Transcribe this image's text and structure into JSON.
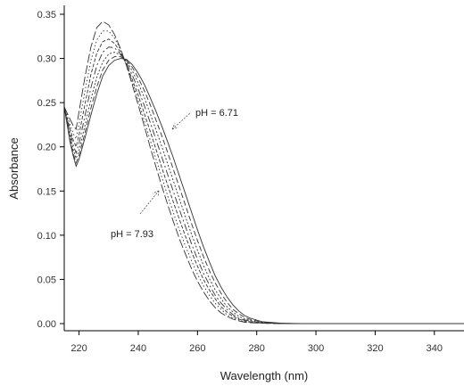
{
  "chart_data": {
    "type": "line",
    "xlabel": "Wavelength (nm)",
    "ylabel": "Absorbance",
    "xlim": [
      215,
      350
    ],
    "ylim": [
      0,
      0.35
    ],
    "x_ticks": [
      220,
      240,
      260,
      280,
      300,
      320,
      340
    ],
    "y_ticks": [
      "0.00",
      "0.05",
      "0.10",
      "0.15",
      "0.20",
      "0.25",
      "0.30",
      "0.35"
    ],
    "grid": false,
    "annotations": [
      {
        "text": "pH = 6.71"
      },
      {
        "text": "pH = 7.93"
      }
    ],
    "x": [
      215,
      216,
      217,
      218,
      219,
      220,
      222,
      224,
      226,
      228,
      230,
      232,
      234,
      236,
      238,
      240,
      242,
      244,
      246,
      248,
      250,
      252,
      254,
      256,
      258,
      260,
      262,
      264,
      266,
      268,
      270,
      272,
      274,
      276,
      278,
      280,
      282,
      284,
      286,
      288,
      290,
      295,
      300,
      310,
      320,
      330,
      340,
      350
    ],
    "series": [
      {
        "values": [
          0.245,
          0.225,
          0.205,
          0.19,
          0.178,
          0.186,
          0.21,
          0.236,
          0.26,
          0.28,
          0.292,
          0.298,
          0.3,
          0.299,
          0.293,
          0.283,
          0.271,
          0.256,
          0.24,
          0.223,
          0.205,
          0.186,
          0.166,
          0.146,
          0.126,
          0.106,
          0.087,
          0.07,
          0.054,
          0.041,
          0.03,
          0.021,
          0.014,
          0.009,
          0.006,
          0.004,
          0.002,
          0.0015,
          0.001,
          0.0005,
          0.0003,
          0.0,
          0.0,
          0.0,
          0.0,
          0.0,
          0.0,
          0.0
        ]
      },
      {
        "values": [
          0.245,
          0.226,
          0.208,
          0.193,
          0.182,
          0.19,
          0.216,
          0.244,
          0.268,
          0.287,
          0.298,
          0.302,
          0.302,
          0.298,
          0.29,
          0.278,
          0.264,
          0.248,
          0.23,
          0.212,
          0.193,
          0.173,
          0.153,
          0.133,
          0.113,
          0.094,
          0.076,
          0.06,
          0.046,
          0.034,
          0.024,
          0.016,
          0.011,
          0.007,
          0.0045,
          0.003,
          0.002,
          0.001,
          0.0007,
          0.0004,
          0.0002,
          0.0,
          0.0,
          0.0,
          0.0,
          0.0,
          0.0,
          0.0
        ]
      },
      {
        "values": [
          0.245,
          0.228,
          0.212,
          0.197,
          0.187,
          0.196,
          0.224,
          0.254,
          0.279,
          0.296,
          0.305,
          0.307,
          0.304,
          0.297,
          0.286,
          0.272,
          0.256,
          0.238,
          0.219,
          0.2,
          0.18,
          0.16,
          0.14,
          0.12,
          0.101,
          0.083,
          0.066,
          0.051,
          0.038,
          0.028,
          0.019,
          0.013,
          0.008,
          0.005,
          0.0035,
          0.002,
          0.0015,
          0.001,
          0.0005,
          0.0003,
          0.0001,
          0.0,
          0.0,
          0.0,
          0.0,
          0.0,
          0.0,
          0.0
        ]
      },
      {
        "values": [
          0.245,
          0.23,
          0.216,
          0.202,
          0.193,
          0.204,
          0.235,
          0.267,
          0.292,
          0.307,
          0.313,
          0.312,
          0.305,
          0.295,
          0.281,
          0.265,
          0.247,
          0.228,
          0.208,
          0.188,
          0.168,
          0.148,
          0.128,
          0.109,
          0.09,
          0.073,
          0.057,
          0.044,
          0.032,
          0.023,
          0.016,
          0.01,
          0.006,
          0.004,
          0.0025,
          0.0015,
          0.001,
          0.0006,
          0.0004,
          0.0002,
          0.0001,
          0.0,
          0.0,
          0.0,
          0.0,
          0.0,
          0.0,
          0.0
        ]
      },
      {
        "values": [
          0.245,
          0.232,
          0.22,
          0.208,
          0.2,
          0.214,
          0.248,
          0.282,
          0.306,
          0.319,
          0.322,
          0.317,
          0.307,
          0.293,
          0.276,
          0.258,
          0.238,
          0.218,
          0.197,
          0.176,
          0.156,
          0.136,
          0.117,
          0.098,
          0.081,
          0.065,
          0.05,
          0.038,
          0.028,
          0.019,
          0.013,
          0.008,
          0.005,
          0.003,
          0.002,
          0.001,
          0.0007,
          0.0005,
          0.0003,
          0.0001,
          0.0,
          0.0,
          0.0,
          0.0,
          0.0,
          0.0,
          0.0,
          0.0
        ]
      },
      {
        "values": [
          0.245,
          0.235,
          0.225,
          0.215,
          0.209,
          0.226,
          0.263,
          0.298,
          0.321,
          0.331,
          0.331,
          0.323,
          0.31,
          0.293,
          0.273,
          0.252,
          0.23,
          0.208,
          0.186,
          0.165,
          0.144,
          0.124,
          0.105,
          0.087,
          0.071,
          0.056,
          0.043,
          0.032,
          0.023,
          0.016,
          0.01,
          0.006,
          0.004,
          0.002,
          0.0015,
          0.001,
          0.0005,
          0.0003,
          0.0002,
          0.0001,
          0.0,
          0.0,
          0.0,
          0.0,
          0.0,
          0.0,
          0.0,
          0.0
        ]
      },
      {
        "values": [
          0.245,
          0.238,
          0.231,
          0.224,
          0.22,
          0.24,
          0.279,
          0.313,
          0.335,
          0.342,
          0.338,
          0.327,
          0.311,
          0.292,
          0.27,
          0.247,
          0.224,
          0.2,
          0.177,
          0.155,
          0.134,
          0.114,
          0.095,
          0.078,
          0.062,
          0.048,
          0.036,
          0.026,
          0.018,
          0.012,
          0.008,
          0.005,
          0.003,
          0.0015,
          0.001,
          0.0007,
          0.0004,
          0.0002,
          0.0001,
          0.0,
          0.0,
          0.0,
          0.0,
          0.0,
          0.0,
          0.0,
          0.0,
          0.0
        ]
      }
    ]
  }
}
